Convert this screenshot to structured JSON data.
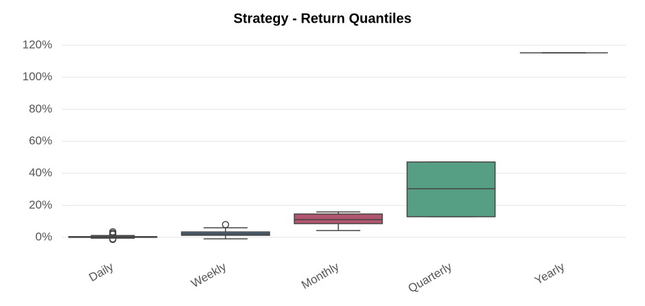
{
  "chart_data": {
    "type": "box",
    "title": "Strategy - Return Quantiles",
    "categories": [
      "Daily",
      "Weekly",
      "Monthly",
      "Quarterly",
      "Yearly"
    ],
    "boxes": [
      {
        "color": "#5b6470",
        "whisker_low": -0.5,
        "q1": 0,
        "median": 0.2,
        "q3": 0.5,
        "whisker_high": 1.2,
        "outliers": [
          3.5,
          2.6,
          1.9,
          -1.3,
          -0.9
        ]
      },
      {
        "color": "#4f6d89",
        "whisker_low": -0.9,
        "q1": 1.3,
        "median": 2.2,
        "q3": 3.4,
        "whisker_high": 6,
        "outliers": [
          8
        ]
      },
      {
        "color": "#b0566e",
        "whisker_low": 4.3,
        "q1": 8.6,
        "median": 11.1,
        "q3": 14.6,
        "whisker_high": 15.9,
        "outliers": []
      },
      {
        "color": "#569e84",
        "whisker_low": 12.9,
        "q1": 12.9,
        "median": 30.4,
        "q3": 47.1,
        "whisker_high": 47.1,
        "outliers": []
      },
      {
        "color": "#7a6a8c",
        "whisker_low": 115.3,
        "q1": 115.3,
        "median": 115.3,
        "q3": 115.3,
        "whisker_high": 115.3,
        "outliers": []
      }
    ],
    "ylim": [
      -5,
      125
    ],
    "yticks": [
      {
        "value": 0,
        "label": "0%"
      },
      {
        "value": 20,
        "label": "20%"
      },
      {
        "value": 40,
        "label": "40%"
      },
      {
        "value": 60,
        "label": "60%"
      },
      {
        "value": 80,
        "label": "80%"
      },
      {
        "value": 100,
        "label": "100%"
      },
      {
        "value": 120,
        "label": "120%"
      }
    ],
    "grid": true
  }
}
